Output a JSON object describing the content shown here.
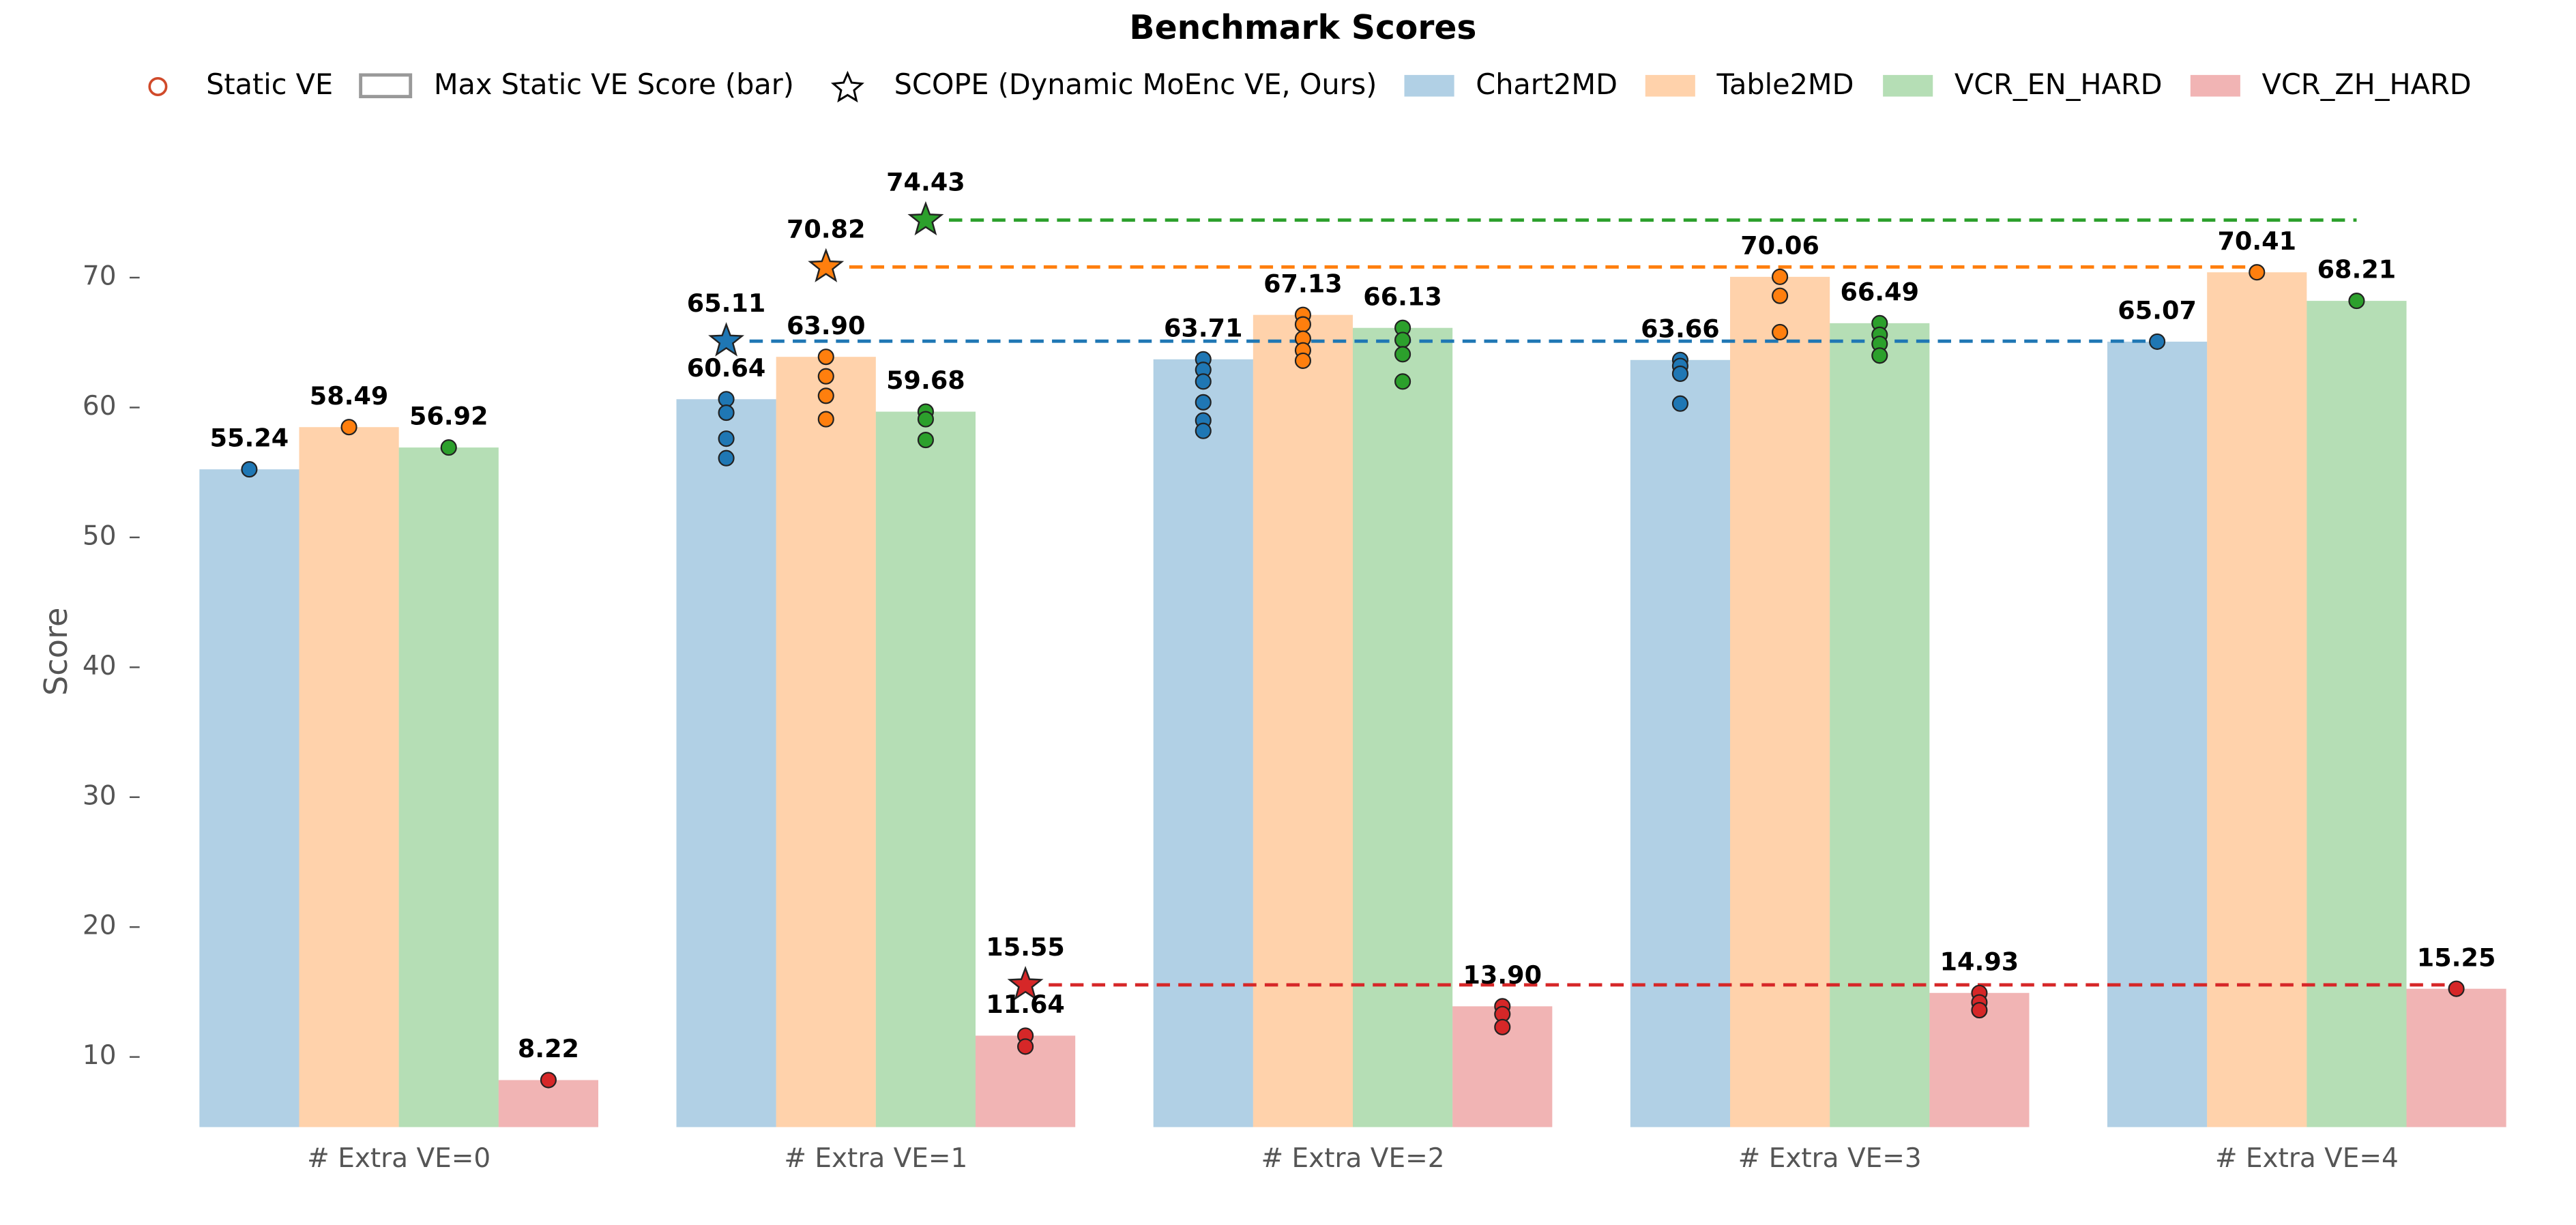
{
  "chart_data": {
    "type": "bar",
    "title": "Benchmark Scores",
    "ylabel": "Score",
    "categories": [
      "# Extra VE=0",
      "# Extra VE=1",
      "# Extra VE=2",
      "# Extra VE=3",
      "# Extra VE=4"
    ],
    "ylim": [
      4.6,
      77.9
    ],
    "yticks": [
      10,
      20,
      30,
      40,
      50,
      60,
      70
    ],
    "grid": false,
    "legend": {
      "static_ve": "Static VE",
      "max_bar": "Max Static VE Score (bar)",
      "scope": "SCOPE (Dynamic MoEnc VE, Ours)"
    },
    "series": [
      {
        "name": "Chart2MD",
        "color": "#1f77b4",
        "values": [
          55.24,
          60.64,
          63.71,
          63.66,
          65.07
        ],
        "value_labels": [
          "55.24",
          "60.64",
          "63.71",
          "63.66",
          "65.07"
        ],
        "static_values": [
          [
            55.24
          ],
          [
            60.64,
            59.6,
            57.6,
            56.1
          ],
          [
            63.71,
            62.9,
            62.0,
            60.4,
            59.0,
            58.2
          ],
          [
            63.66,
            63.2,
            62.6,
            60.3
          ],
          [
            65.07
          ]
        ],
        "scope": 65.11
      },
      {
        "name": "Table2MD",
        "color": "#ff7f0e",
        "values": [
          58.49,
          63.9,
          67.13,
          70.06,
          70.41
        ],
        "value_labels": [
          "58.49",
          "63.90",
          "67.13",
          "70.06",
          "70.41"
        ],
        "static_values": [
          [
            58.49
          ],
          [
            63.9,
            62.4,
            60.9,
            59.1
          ],
          [
            67.13,
            66.4,
            65.3,
            64.4,
            63.6
          ],
          [
            70.06,
            68.6,
            65.8
          ],
          [
            70.41
          ]
        ],
        "scope": 70.82
      },
      {
        "name": "VCR_EN_HARD",
        "color": "#2ca02c",
        "values": [
          56.92,
          59.68,
          66.13,
          66.49,
          68.21
        ],
        "value_labels": [
          "56.92",
          "59.68",
          "66.13",
          "66.49",
          "68.21"
        ],
        "static_values": [
          [
            56.92
          ],
          [
            59.68,
            59.1,
            57.5
          ],
          [
            66.13,
            65.2,
            64.1,
            62.0
          ],
          [
            66.49,
            65.6,
            64.9,
            64.0
          ],
          [
            68.21
          ]
        ],
        "scope": 74.43
      },
      {
        "name": "VCR_ZH_HARD",
        "color": "#d62728",
        "values": [
          8.22,
          11.64,
          13.9,
          14.93,
          15.25
        ],
        "value_labels": [
          "8.22",
          "11.64",
          "13.90",
          "14.93",
          "15.25"
        ],
        "static_values": [
          [
            8.22
          ],
          [
            11.64,
            10.8
          ],
          [
            13.9,
            13.3,
            12.3
          ],
          [
            14.93,
            14.2,
            13.6
          ],
          [
            15.25
          ]
        ],
        "scope": 15.55
      }
    ]
  }
}
